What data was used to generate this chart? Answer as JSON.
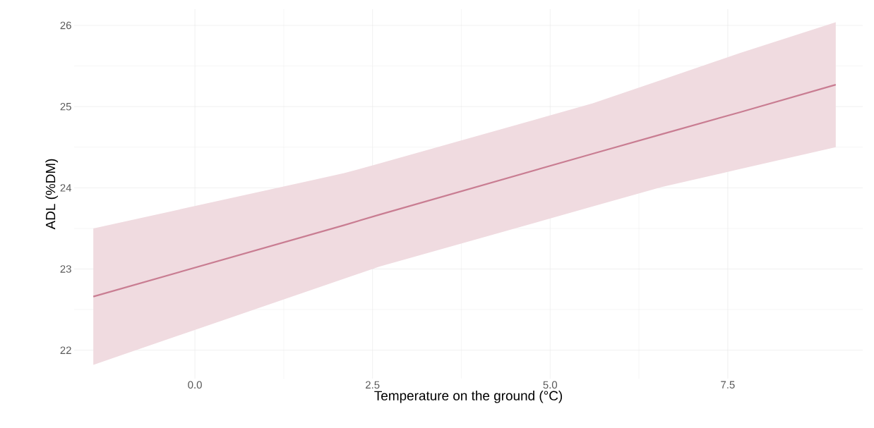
{
  "chart_data": {
    "type": "line",
    "xlabel": "Temperature on the ground (°C)",
    "ylabel": "ADL (%DM)",
    "x": [
      -1.43,
      2.1,
      2.6,
      5.6,
      6.57,
      7.67,
      9.02
    ],
    "series": [
      {
        "color": "#c97d92",
        "values": [
          22.66,
          23.54,
          23.67,
          24.42,
          24.66,
          24.93,
          25.27
        ],
        "lower": [
          21.82,
          22.88,
          23.03,
          23.77,
          24.01,
          24.23,
          24.5
        ],
        "upper": [
          23.5,
          24.18,
          24.3,
          25.04,
          25.33,
          25.66,
          26.04
        ]
      }
    ],
    "xlim": [
      -1.7,
      9.4
    ],
    "ylim": [
      21.65,
      26.2
    ],
    "xticks": [
      {
        "value": 0,
        "label": "0.0"
      },
      {
        "value": 2.5,
        "label": "2.5"
      },
      {
        "value": 5,
        "label": "5.0"
      },
      {
        "value": 7.5,
        "label": "7.5"
      }
    ],
    "yticks": [
      22,
      23,
      24,
      25,
      26
    ],
    "grid": true
  }
}
